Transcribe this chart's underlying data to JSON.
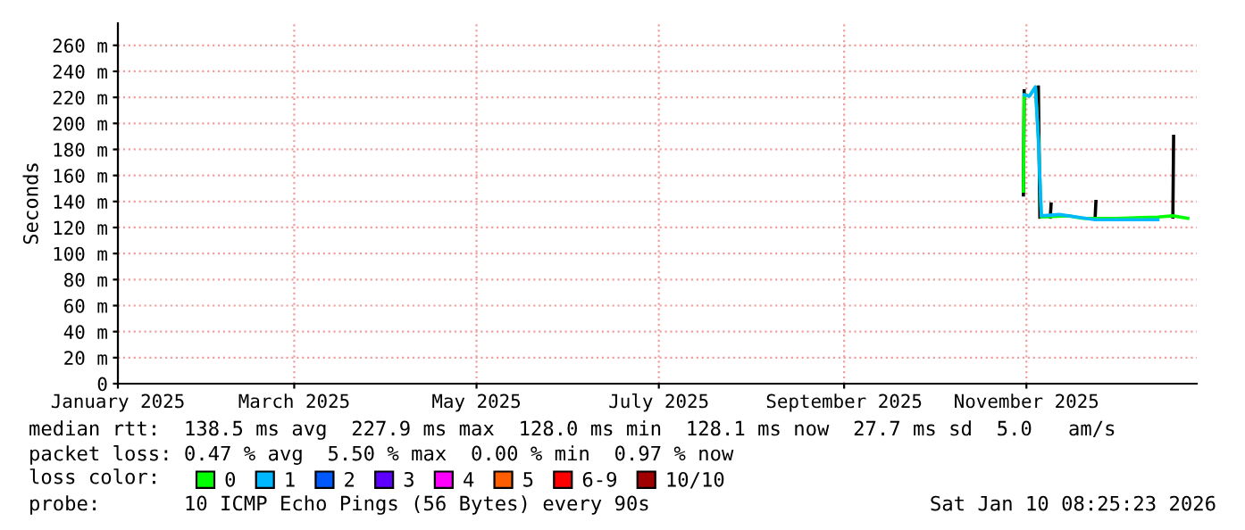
{
  "chart_data": {
    "type": "line",
    "ylabel": "Seconds",
    "legend_title": "loss color:",
    "legend": "bottom",
    "grid": true,
    "line_style": "solid",
    "marker": "none",
    "xlim": [
      "2025-01-01",
      "2025-12-28"
    ],
    "xticks": [
      {
        "value": "2025-01-01",
        "label": "January 2025"
      },
      {
        "value": "2025-03-01",
        "label": "March 2025"
      },
      {
        "value": "2025-05-01",
        "label": "May 2025"
      },
      {
        "value": "2025-07-01",
        "label": "July 2025"
      },
      {
        "value": "2025-09-01",
        "label": "September 2025"
      },
      {
        "value": "2025-11-01",
        "label": "November 2025"
      }
    ],
    "ylim": [
      0,
      277
    ],
    "yticks": [
      0,
      {
        "value": 20,
        "label": "20 m"
      },
      {
        "value": 40,
        "label": "40 m"
      },
      {
        "value": 60,
        "label": "60 m"
      },
      {
        "value": 80,
        "label": "80 m"
      },
      {
        "value": 100,
        "label": "100 m"
      },
      {
        "value": 120,
        "label": "120 m"
      },
      {
        "value": 140,
        "label": "140 m"
      },
      {
        "value": 160,
        "label": "160 m"
      },
      {
        "value": 180,
        "label": "180 m"
      },
      {
        "value": 200,
        "label": "200 m"
      },
      {
        "value": 220,
        "label": "220 m"
      },
      {
        "value": 240,
        "label": "240 m"
      },
      {
        "value": 260,
        "label": "260 m"
      }
    ],
    "series": [
      {
        "color": "#000000",
        "x": [
          "2025-10-31T00:00",
          "2025-10-31T06:00",
          "2025-11-01",
          "2025-11-05T00:00",
          "2025-11-05T12:00",
          "2025-11-07",
          "2025-11-09T00:00",
          "2025-11-09T06:00",
          "2025-11-10",
          "2025-11-24T00:00",
          "2025-11-24T06:00",
          "2025-11-25",
          "2025-12-20T00:00",
          "2025-12-20T06:00"
        ],
        "values": [
          145,
          225,
          null,
          228,
          128,
          null,
          128,
          138,
          null,
          128,
          140,
          null,
          128,
          190
        ]
      },
      {
        "name": "0",
        "color": "#00ff00",
        "x": [
          "2025-10-31T00:00",
          "2025-10-31T06:00",
          "2025-11-02",
          "2025-11-04",
          "2025-11-05",
          "2025-11-06",
          "2025-11-15",
          "2025-11-20",
          "2025-12-01",
          "2025-12-15",
          "2025-12-20",
          "2025-12-25"
        ],
        "values": [
          148,
          222,
          221,
          228,
          188,
          128,
          129,
          127,
          127,
          128,
          129,
          127
        ]
      },
      {
        "name": "1",
        "color": "#00b8ff",
        "x": [
          "2025-10-31T06:00",
          "2025-11-02",
          "2025-11-04",
          "2025-11-05",
          "2025-11-06",
          "2025-11-12",
          "2025-11-24",
          "2025-12-05",
          "2025-12-15"
        ],
        "values": [
          222,
          221,
          228,
          188,
          129,
          130,
          126,
          126,
          126
        ]
      },
      {
        "name": "2",
        "color": "#0059ff"
      },
      {
        "name": "3",
        "color": "#5e00ff"
      },
      {
        "name": "4",
        "color": "#ff00ff"
      },
      {
        "name": "5",
        "color": "#ff5e00"
      },
      {
        "name": "6-9",
        "color": "#ff0000"
      },
      {
        "name": "10/10",
        "color": "#a10000"
      }
    ],
    "annotations": [
      "median rtt:  138.5 ms avg  227.9 ms max  128.0 ms min  128.1 ms now  27.7 ms sd  5.0   am/s",
      "packet loss: 0.47 % avg  5.50 % max  0.00 % min  0.97 % now",
      "probe:       10 ICMP Echo Pings (56 Bytes) every 90s",
      "Sat Jan 10 08:25:23 2026"
    ]
  }
}
